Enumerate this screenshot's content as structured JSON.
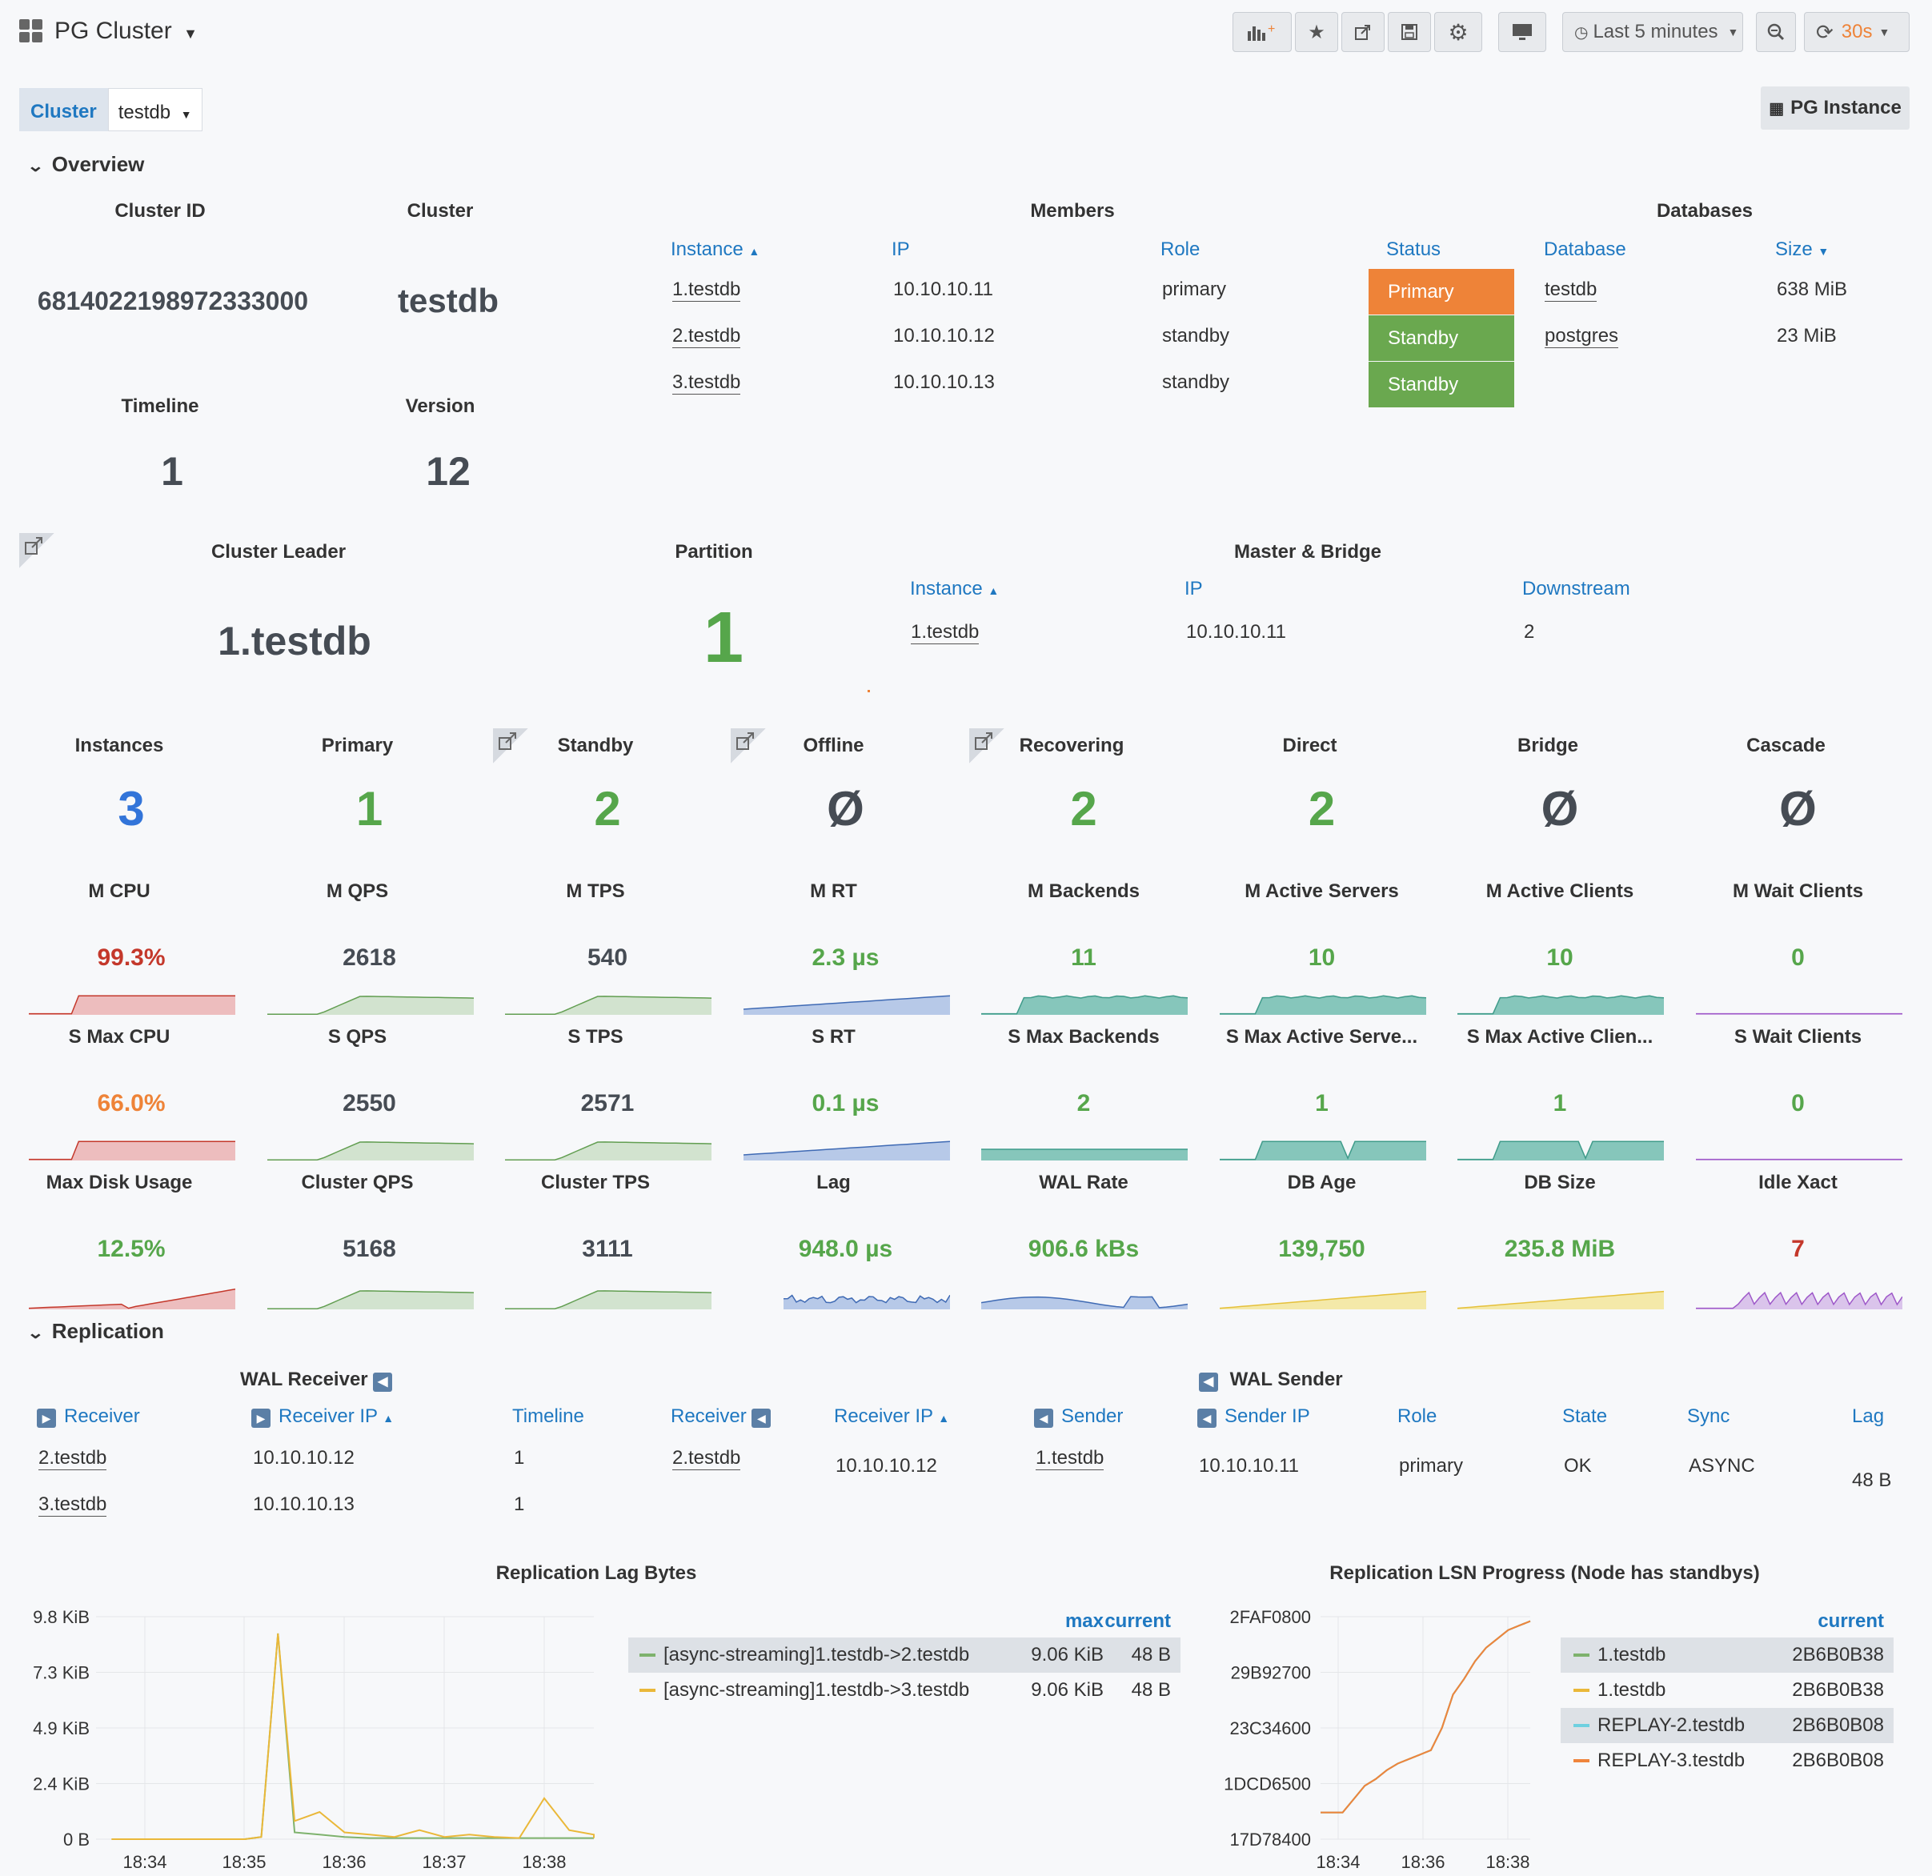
{
  "header": {
    "title": "PG Cluster",
    "time_range": "Last 5 minutes",
    "refresh": "30s"
  },
  "vars": {
    "cluster_label": "Cluster",
    "cluster_value": "testdb",
    "pg_instance_link": "PG Instance"
  },
  "rows": {
    "overview": "Overview",
    "replication": "Replication"
  },
  "overview": {
    "cluster_id": {
      "title": "Cluster ID",
      "value": "6814022198972333000"
    },
    "cluster": {
      "title": "Cluster",
      "value": "testdb"
    },
    "timeline": {
      "title": "Timeline",
      "value": "1"
    },
    "version": {
      "title": "Version",
      "value": "12"
    },
    "members": {
      "title": "Members",
      "headers": [
        "Instance",
        "IP",
        "Role",
        "Status"
      ],
      "rows": [
        {
          "instance": "1.testdb",
          "ip": "10.10.10.11",
          "role": "primary",
          "status": "Primary",
          "status_color": "#ee8338"
        },
        {
          "instance": "2.testdb",
          "ip": "10.10.10.12",
          "role": "standby",
          "status": "Standby",
          "status_color": "#6aa84f"
        },
        {
          "instance": "3.testdb",
          "ip": "10.10.10.13",
          "role": "standby",
          "status": "Standby",
          "status_color": "#6aa84f"
        }
      ]
    },
    "databases": {
      "title": "Databases",
      "headers": [
        "Database",
        "Size"
      ],
      "rows": [
        {
          "database": "testdb",
          "size": "638 MiB"
        },
        {
          "database": "postgres",
          "size": "23 MiB"
        }
      ]
    },
    "leader": {
      "title": "Cluster Leader",
      "value": "1.testdb"
    },
    "partition": {
      "title": "Partition",
      "value": "1"
    },
    "master_bridge": {
      "title": "Master & Bridge",
      "headers": [
        "Instance",
        "IP",
        "Downstream"
      ],
      "rows": [
        {
          "instance": "1.testdb",
          "ip": "10.10.10.11",
          "downstream": "2"
        }
      ]
    },
    "counts": [
      {
        "title": "Instances",
        "value": "3",
        "color": "#3274d9"
      },
      {
        "title": "Primary",
        "value": "1",
        "color": "#56a64b"
      },
      {
        "title": "Standby",
        "value": "2",
        "color": "#56a64b"
      },
      {
        "title": "Offline",
        "value": "Ø",
        "color": "#464c54"
      },
      {
        "title": "Recovering",
        "value": "2",
        "color": "#56a64b"
      },
      {
        "title": "Direct",
        "value": "2",
        "color": "#56a64b"
      },
      {
        "title": "Bridge",
        "value": "Ø",
        "color": "#464c54"
      },
      {
        "title": "Cascade",
        "value": "Ø",
        "color": "#464c54"
      }
    ],
    "stats_row1": [
      {
        "title": "M CPU",
        "value": "99.3%",
        "color": "#c4382b",
        "spark": "red"
      },
      {
        "title": "M QPS",
        "value": "2618",
        "color": "#464c54",
        "spark": "green"
      },
      {
        "title": "M TPS",
        "value": "540",
        "color": "#464c54",
        "spark": "green"
      },
      {
        "title": "M RT",
        "value": "2.3 µs",
        "color": "#56a64b",
        "spark": "blue"
      },
      {
        "title": "M Backends",
        "value": "11",
        "color": "#56a64b",
        "spark": "teal"
      },
      {
        "title": "M Active Servers",
        "value": "10",
        "color": "#56a64b",
        "spark": "teal"
      },
      {
        "title": "M Active Clients",
        "value": "10",
        "color": "#56a64b",
        "spark": "teal"
      },
      {
        "title": "M Wait Clients",
        "value": "0",
        "color": "#56a64b",
        "spark": "purple"
      }
    ],
    "stats_row2": [
      {
        "title": "S Max CPU",
        "value": "66.0%",
        "color": "#ee8338",
        "spark": "red"
      },
      {
        "title": "S QPS",
        "value": "2550",
        "color": "#464c54",
        "spark": "green"
      },
      {
        "title": "S TPS",
        "value": "2571",
        "color": "#464c54",
        "spark": "green"
      },
      {
        "title": "S RT",
        "value": "0.1 µs",
        "color": "#56a64b",
        "spark": "blue"
      },
      {
        "title": "S Max Backends",
        "value": "2",
        "color": "#56a64b",
        "spark": "teal"
      },
      {
        "title": "S Max Active Serve...",
        "value": "1",
        "color": "#56a64b",
        "spark": "teal"
      },
      {
        "title": "S Max Active Clien...",
        "value": "1",
        "color": "#56a64b",
        "spark": "teal"
      },
      {
        "title": "S Wait Clients",
        "value": "0",
        "color": "#56a64b",
        "spark": "purple"
      }
    ],
    "stats_row3": [
      {
        "title": "Max Disk Usage",
        "value": "12.5%",
        "color": "#56a64b",
        "spark": "red"
      },
      {
        "title": "Cluster QPS",
        "value": "5168",
        "color": "#464c54",
        "spark": "green"
      },
      {
        "title": "Cluster TPS",
        "value": "3111",
        "color": "#464c54",
        "spark": "green"
      },
      {
        "title": "Lag",
        "value": "948.0 µs",
        "color": "#56a64b",
        "spark": "blue"
      },
      {
        "title": "WAL Rate",
        "value": "906.6 kBs",
        "color": "#56a64b",
        "spark": "blue"
      },
      {
        "title": "DB Age",
        "value": "139,750",
        "color": "#56a64b",
        "spark": "yellow"
      },
      {
        "title": "DB Size",
        "value": "235.8 MiB",
        "color": "#56a64b",
        "spark": "yellow"
      },
      {
        "title": "Idle Xact",
        "value": "7",
        "color": "#c4382b",
        "spark": "purple"
      }
    ]
  },
  "replication": {
    "wal_receiver": {
      "title": "WAL Receiver",
      "headers": [
        "Receiver",
        "Receiver IP",
        "Timeline"
      ],
      "rows": [
        {
          "receiver": "2.testdb",
          "ip": "10.10.10.12",
          "timeline": "1"
        },
        {
          "receiver": "3.testdb",
          "ip": "10.10.10.13",
          "timeline": "1"
        }
      ]
    },
    "wal_sender": {
      "title": "WAL Sender",
      "headers": [
        "Receiver",
        "Receiver IP",
        "Sender",
        "Sender IP",
        "Role",
        "State",
        "Sync",
        "Lag"
      ],
      "rows": [
        {
          "receiver": "2.testdb",
          "receiver_ip": "10.10.10.12",
          "sender": "1.testdb",
          "sender_ip": "10.10.10.11",
          "role": "primary",
          "state": "OK",
          "sync": "ASYNC",
          "lag": "48 B"
        }
      ]
    }
  },
  "chart_data": [
    {
      "type": "line",
      "title": "Replication Lag Bytes",
      "x": [
        "18:33:40",
        "18:34:00",
        "18:34:20",
        "18:34:40",
        "18:35:00",
        "18:35:10",
        "18:35:20",
        "18:35:30",
        "18:35:45",
        "18:36:00",
        "18:36:15",
        "18:36:30",
        "18:36:45",
        "18:37:00",
        "18:37:15",
        "18:37:30",
        "18:37:45",
        "18:38:00",
        "18:38:15",
        "18:38:30",
        "18:38:45"
      ],
      "x_ticks": [
        "18:34",
        "18:35",
        "18:36",
        "18:37",
        "18:38"
      ],
      "y_ticks": [
        "0 B",
        "2.4 KiB",
        "4.9 KiB",
        "7.3 KiB",
        "9.8 KiB"
      ],
      "ylim": [
        0,
        9.8
      ],
      "series": [
        {
          "name": "[async-streaming]1.testdb->2.testdb",
          "color": "#7eb26d",
          "max": "9.06 KiB",
          "current": "48 B",
          "values": [
            0,
            0,
            0,
            0,
            0,
            0.1,
            9.06,
            0.3,
            0.2,
            0.1,
            0.05,
            0.05,
            0.05,
            0.05,
            0.05,
            0.05,
            0.05,
            0.05,
            0.05,
            0.05,
            0.05
          ]
        },
        {
          "name": "[async-streaming]1.testdb->3.testdb",
          "color": "#eab839",
          "max": "9.06 KiB",
          "current": "48 B",
          "values": [
            0,
            0,
            0,
            0,
            0,
            0.1,
            9.06,
            0.8,
            1.2,
            0.3,
            0.2,
            0.1,
            0.4,
            0.1,
            0.2,
            0.1,
            0.05,
            1.8,
            0.4,
            0.2,
            0.05
          ]
        }
      ],
      "legend_headers": [
        "max",
        "current"
      ]
    },
    {
      "type": "line",
      "title": "Replication LSN Progress (Node has standbys)",
      "x_ticks": [
        "18:34",
        "18:36",
        "18:38"
      ],
      "y_ticks": [
        "17D78400",
        "1DCD6500",
        "23C34600",
        "29B92700",
        "2FAF0800"
      ],
      "series": [
        {
          "name": "1.testdb",
          "color": "#7eb26d",
          "current": "2B6B0B38"
        },
        {
          "name": "1.testdb",
          "color": "#eab839",
          "current": "2B6B0B38"
        },
        {
          "name": "REPLAY-2.testdb",
          "color": "#6ed0e0",
          "current": "2B6B0B08"
        },
        {
          "name": "REPLAY-3.testdb",
          "color": "#ef843c",
          "current": "2B6B0B08"
        }
      ],
      "values": [
        0.12,
        0.12,
        0.12,
        0.18,
        0.24,
        0.27,
        0.31,
        0.34,
        0.36,
        0.38,
        0.4,
        0.5,
        0.65,
        0.72,
        0.8,
        0.86,
        0.9,
        0.94,
        0.96,
        0.98
      ],
      "legend_headers": [
        "current"
      ]
    }
  ]
}
